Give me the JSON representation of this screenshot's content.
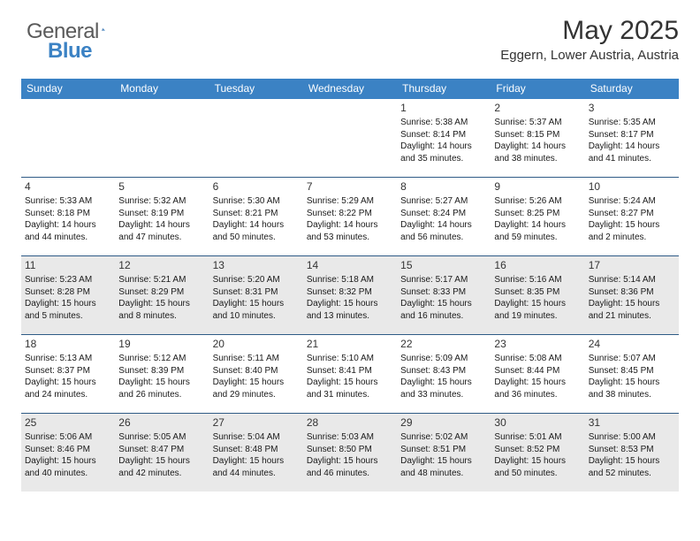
{
  "brand": {
    "name1": "General",
    "name2": "Blue"
  },
  "title": "May 2025",
  "location": "Eggern, Lower Austria, Austria",
  "dayNames": [
    "Sunday",
    "Monday",
    "Tuesday",
    "Wednesday",
    "Thursday",
    "Friday",
    "Saturday"
  ],
  "colors": {
    "headerBg": "#3b82c4",
    "rowBorder": "#2f5b86",
    "shaded": "#e9e9e9",
    "text": "#1a1a1a"
  },
  "weeks": [
    [
      {
        "blank": true
      },
      {
        "blank": true
      },
      {
        "blank": true
      },
      {
        "blank": true
      },
      {
        "day": "1",
        "sunrise": "Sunrise: 5:38 AM",
        "sunset": "Sunset: 8:14 PM",
        "daylight": "Daylight: 14 hours and 35 minutes."
      },
      {
        "day": "2",
        "sunrise": "Sunrise: 5:37 AM",
        "sunset": "Sunset: 8:15 PM",
        "daylight": "Daylight: 14 hours and 38 minutes."
      },
      {
        "day": "3",
        "sunrise": "Sunrise: 5:35 AM",
        "sunset": "Sunset: 8:17 PM",
        "daylight": "Daylight: 14 hours and 41 minutes."
      }
    ],
    [
      {
        "day": "4",
        "sunrise": "Sunrise: 5:33 AM",
        "sunset": "Sunset: 8:18 PM",
        "daylight": "Daylight: 14 hours and 44 minutes."
      },
      {
        "day": "5",
        "sunrise": "Sunrise: 5:32 AM",
        "sunset": "Sunset: 8:19 PM",
        "daylight": "Daylight: 14 hours and 47 minutes."
      },
      {
        "day": "6",
        "sunrise": "Sunrise: 5:30 AM",
        "sunset": "Sunset: 8:21 PM",
        "daylight": "Daylight: 14 hours and 50 minutes."
      },
      {
        "day": "7",
        "sunrise": "Sunrise: 5:29 AM",
        "sunset": "Sunset: 8:22 PM",
        "daylight": "Daylight: 14 hours and 53 minutes."
      },
      {
        "day": "8",
        "sunrise": "Sunrise: 5:27 AM",
        "sunset": "Sunset: 8:24 PM",
        "daylight": "Daylight: 14 hours and 56 minutes."
      },
      {
        "day": "9",
        "sunrise": "Sunrise: 5:26 AM",
        "sunset": "Sunset: 8:25 PM",
        "daylight": "Daylight: 14 hours and 59 minutes."
      },
      {
        "day": "10",
        "sunrise": "Sunrise: 5:24 AM",
        "sunset": "Sunset: 8:27 PM",
        "daylight": "Daylight: 15 hours and 2 minutes."
      }
    ],
    [
      {
        "day": "11",
        "sunrise": "Sunrise: 5:23 AM",
        "sunset": "Sunset: 8:28 PM",
        "daylight": "Daylight: 15 hours and 5 minutes."
      },
      {
        "day": "12",
        "sunrise": "Sunrise: 5:21 AM",
        "sunset": "Sunset: 8:29 PM",
        "daylight": "Daylight: 15 hours and 8 minutes."
      },
      {
        "day": "13",
        "sunrise": "Sunrise: 5:20 AM",
        "sunset": "Sunset: 8:31 PM",
        "daylight": "Daylight: 15 hours and 10 minutes."
      },
      {
        "day": "14",
        "sunrise": "Sunrise: 5:18 AM",
        "sunset": "Sunset: 8:32 PM",
        "daylight": "Daylight: 15 hours and 13 minutes."
      },
      {
        "day": "15",
        "sunrise": "Sunrise: 5:17 AM",
        "sunset": "Sunset: 8:33 PM",
        "daylight": "Daylight: 15 hours and 16 minutes."
      },
      {
        "day": "16",
        "sunrise": "Sunrise: 5:16 AM",
        "sunset": "Sunset: 8:35 PM",
        "daylight": "Daylight: 15 hours and 19 minutes."
      },
      {
        "day": "17",
        "sunrise": "Sunrise: 5:14 AM",
        "sunset": "Sunset: 8:36 PM",
        "daylight": "Daylight: 15 hours and 21 minutes."
      }
    ],
    [
      {
        "day": "18",
        "sunrise": "Sunrise: 5:13 AM",
        "sunset": "Sunset: 8:37 PM",
        "daylight": "Daylight: 15 hours and 24 minutes."
      },
      {
        "day": "19",
        "sunrise": "Sunrise: 5:12 AM",
        "sunset": "Sunset: 8:39 PM",
        "daylight": "Daylight: 15 hours and 26 minutes."
      },
      {
        "day": "20",
        "sunrise": "Sunrise: 5:11 AM",
        "sunset": "Sunset: 8:40 PM",
        "daylight": "Daylight: 15 hours and 29 minutes."
      },
      {
        "day": "21",
        "sunrise": "Sunrise: 5:10 AM",
        "sunset": "Sunset: 8:41 PM",
        "daylight": "Daylight: 15 hours and 31 minutes."
      },
      {
        "day": "22",
        "sunrise": "Sunrise: 5:09 AM",
        "sunset": "Sunset: 8:43 PM",
        "daylight": "Daylight: 15 hours and 33 minutes."
      },
      {
        "day": "23",
        "sunrise": "Sunrise: 5:08 AM",
        "sunset": "Sunset: 8:44 PM",
        "daylight": "Daylight: 15 hours and 36 minutes."
      },
      {
        "day": "24",
        "sunrise": "Sunrise: 5:07 AM",
        "sunset": "Sunset: 8:45 PM",
        "daylight": "Daylight: 15 hours and 38 minutes."
      }
    ],
    [
      {
        "day": "25",
        "sunrise": "Sunrise: 5:06 AM",
        "sunset": "Sunset: 8:46 PM",
        "daylight": "Daylight: 15 hours and 40 minutes."
      },
      {
        "day": "26",
        "sunrise": "Sunrise: 5:05 AM",
        "sunset": "Sunset: 8:47 PM",
        "daylight": "Daylight: 15 hours and 42 minutes."
      },
      {
        "day": "27",
        "sunrise": "Sunrise: 5:04 AM",
        "sunset": "Sunset: 8:48 PM",
        "daylight": "Daylight: 15 hours and 44 minutes."
      },
      {
        "day": "28",
        "sunrise": "Sunrise: 5:03 AM",
        "sunset": "Sunset: 8:50 PM",
        "daylight": "Daylight: 15 hours and 46 minutes."
      },
      {
        "day": "29",
        "sunrise": "Sunrise: 5:02 AM",
        "sunset": "Sunset: 8:51 PM",
        "daylight": "Daylight: 15 hours and 48 minutes."
      },
      {
        "day": "30",
        "sunrise": "Sunrise: 5:01 AM",
        "sunset": "Sunset: 8:52 PM",
        "daylight": "Daylight: 15 hours and 50 minutes."
      },
      {
        "day": "31",
        "sunrise": "Sunrise: 5:00 AM",
        "sunset": "Sunset: 8:53 PM",
        "daylight": "Daylight: 15 hours and 52 minutes."
      }
    ]
  ],
  "shadedWeeks": [
    2,
    4
  ]
}
